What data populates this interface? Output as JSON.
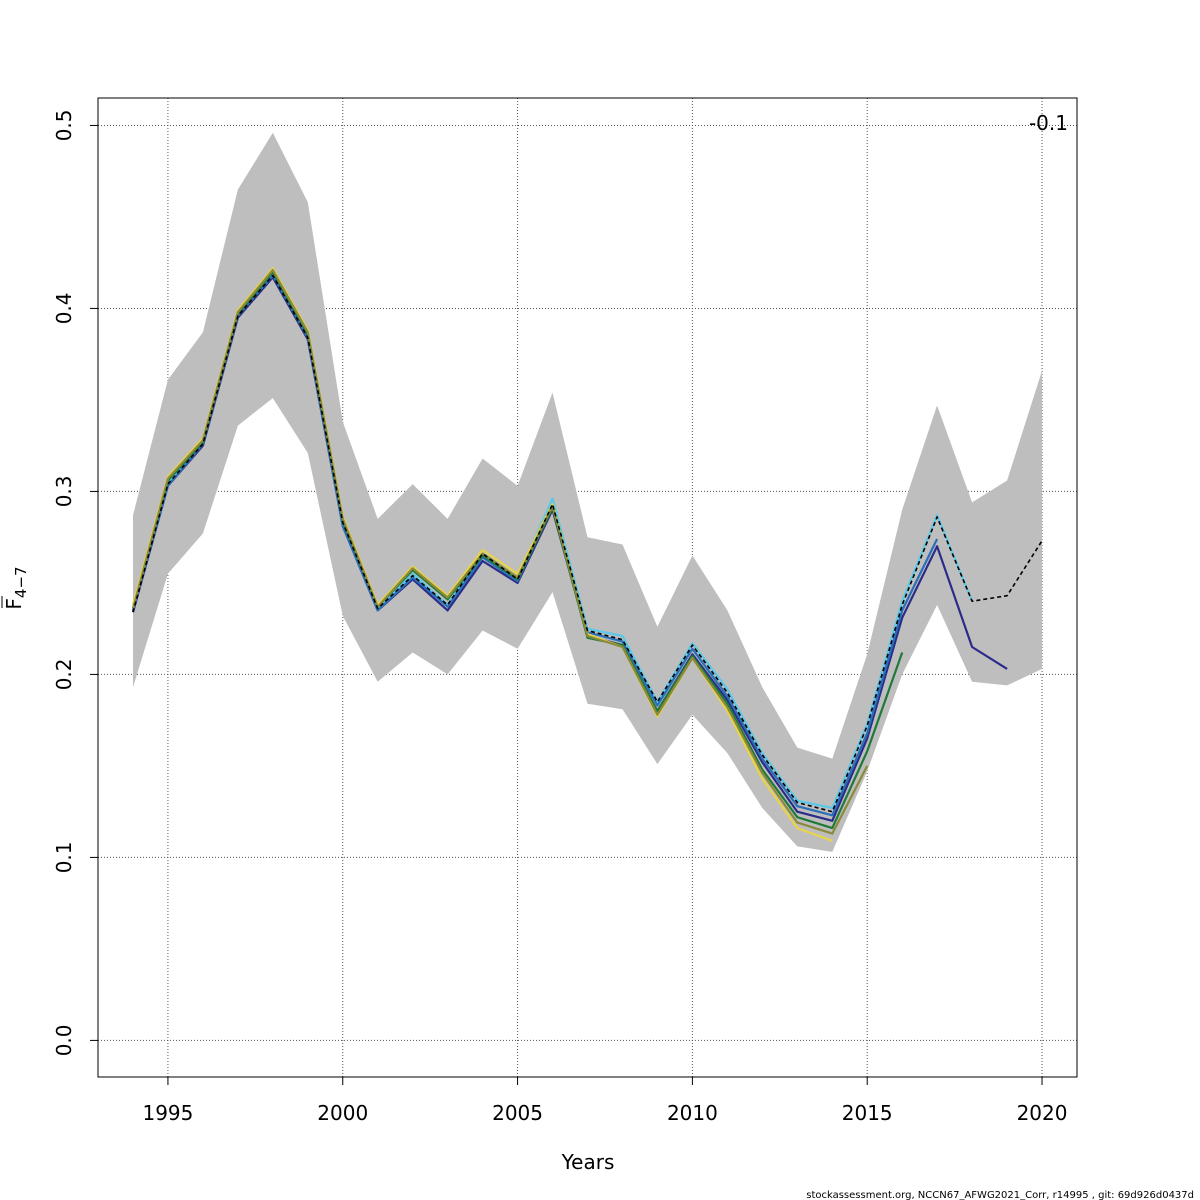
{
  "chart_data": {
    "type": "line",
    "title": "",
    "xlabel": "Years",
    "ylabel_main": "F",
    "ylabel_sub": "4−7",
    "corner_label": "-0.1",
    "footer": "stockassessment.org, NCCN67_AFWG2021_Corr, r14995 , git: 69d926d0437d",
    "xlim": [
      1993,
      2021
    ],
    "ylim": [
      -0.02,
      0.515
    ],
    "x_ticks": [
      1995,
      2000,
      2005,
      2010,
      2015,
      2020
    ],
    "y_ticks": [
      0.0,
      0.1,
      0.2,
      0.3,
      0.4,
      0.5
    ],
    "y_tick_labels": [
      "0.0",
      "0.1",
      "0.2",
      "0.3",
      "0.4",
      "0.5"
    ],
    "grid": true,
    "confidence_band": {
      "x": [
        1994,
        1995,
        1996,
        1997,
        1998,
        1999,
        2000,
        2001,
        2002,
        2003,
        2004,
        2005,
        2006,
        2007,
        2008,
        2009,
        2010,
        2011,
        2012,
        2013,
        2014,
        2015,
        2016,
        2017,
        2018,
        2019,
        2020
      ],
      "lower": [
        0.193,
        0.255,
        0.277,
        0.336,
        0.351,
        0.321,
        0.232,
        0.196,
        0.212,
        0.2,
        0.224,
        0.214,
        0.245,
        0.184,
        0.181,
        0.151,
        0.178,
        0.157,
        0.127,
        0.106,
        0.103,
        0.147,
        0.2,
        0.238,
        0.196,
        0.194,
        0.203
      ],
      "upper": [
        0.287,
        0.361,
        0.387,
        0.465,
        0.496,
        0.458,
        0.338,
        0.285,
        0.304,
        0.285,
        0.318,
        0.303,
        0.354,
        0.275,
        0.271,
        0.226,
        0.265,
        0.235,
        0.193,
        0.16,
        0.154,
        0.211,
        0.29,
        0.347,
        0.294,
        0.306,
        0.366
      ],
      "color": "#bebebe"
    },
    "series": [
      {
        "color": "#000000",
        "dashed": true,
        "x": [
          1994,
          1995,
          1996,
          1997,
          1998,
          1999,
          2000,
          2001,
          2002,
          2003,
          2004,
          2005,
          2006,
          2007,
          2008,
          2009,
          2010,
          2011,
          2012,
          2013,
          2014,
          2015,
          2016,
          2017,
          2018,
          2019,
          2020
        ],
        "values": [
          0.234,
          0.304,
          0.326,
          0.396,
          0.418,
          0.384,
          0.283,
          0.236,
          0.254,
          0.238,
          0.266,
          0.252,
          0.293,
          0.224,
          0.219,
          0.185,
          0.216,
          0.19,
          0.156,
          0.13,
          0.125,
          0.172,
          0.238,
          0.286,
          0.24,
          0.243,
          0.273
        ]
      },
      {
        "color": "#5bc8e8",
        "x": [
          1994,
          1995,
          1996,
          1997,
          1998,
          1999,
          2000,
          2001,
          2002,
          2003,
          2004,
          2005,
          2006,
          2007,
          2008,
          2009,
          2010,
          2011,
          2012,
          2013,
          2014,
          2015,
          2016,
          2017,
          2018
        ],
        "values": [
          0.235,
          0.305,
          0.327,
          0.397,
          0.419,
          0.385,
          0.283,
          0.236,
          0.255,
          0.238,
          0.266,
          0.253,
          0.296,
          0.225,
          0.221,
          0.185,
          0.217,
          0.192,
          0.157,
          0.131,
          0.127,
          0.173,
          0.24,
          0.287,
          0.24
        ]
      },
      {
        "color": "#2b2b8a",
        "x": [
          1994,
          1995,
          1996,
          1997,
          1998,
          1999,
          2000,
          2001,
          2002,
          2003,
          2004,
          2005,
          2006,
          2007,
          2008,
          2009,
          2010,
          2011,
          2012,
          2013,
          2014,
          2015,
          2016,
          2017,
          2018,
          2019
        ],
        "values": [
          0.234,
          0.303,
          0.325,
          0.395,
          0.417,
          0.383,
          0.281,
          0.235,
          0.252,
          0.235,
          0.262,
          0.25,
          0.29,
          0.221,
          0.216,
          0.18,
          0.211,
          0.186,
          0.152,
          0.125,
          0.12,
          0.165,
          0.231,
          0.27,
          0.215,
          0.203
        ]
      },
      {
        "color": "#2a70b8",
        "x": [
          1994,
          1995,
          1996,
          1997,
          1998,
          1999,
          2000,
          2001,
          2002,
          2003,
          2004,
          2005,
          2006,
          2007,
          2008,
          2009,
          2010,
          2011,
          2012,
          2013,
          2014,
          2015,
          2016,
          2017
        ],
        "values": [
          0.235,
          0.303,
          0.326,
          0.396,
          0.418,
          0.384,
          0.281,
          0.235,
          0.253,
          0.237,
          0.264,
          0.251,
          0.292,
          0.223,
          0.218,
          0.183,
          0.214,
          0.188,
          0.154,
          0.128,
          0.123,
          0.168,
          0.235,
          0.274
        ]
      },
      {
        "color": "#1f7a3a",
        "x": [
          1994,
          1995,
          1996,
          1997,
          1998,
          1999,
          2000,
          2001,
          2002,
          2003,
          2004,
          2005,
          2006,
          2007,
          2008,
          2009,
          2010,
          2011,
          2012,
          2013,
          2014,
          2015,
          2016
        ],
        "values": [
          0.236,
          0.306,
          0.327,
          0.397,
          0.42,
          0.386,
          0.284,
          0.237,
          0.257,
          0.241,
          0.265,
          0.252,
          0.291,
          0.22,
          0.216,
          0.18,
          0.21,
          0.184,
          0.148,
          0.122,
          0.116,
          0.158,
          0.212
        ]
      },
      {
        "color": "#e8d44a",
        "x": [
          1994,
          1995,
          1996,
          1997,
          1998,
          1999,
          2000,
          2001,
          2002,
          2003,
          2004,
          2005,
          2006,
          2007,
          2008,
          2009,
          2010,
          2011,
          2012,
          2013,
          2014
        ],
        "values": [
          0.238,
          0.308,
          0.329,
          0.399,
          0.422,
          0.388,
          0.286,
          0.238,
          0.259,
          0.243,
          0.268,
          0.255,
          0.293,
          0.222,
          0.215,
          0.177,
          0.209,
          0.18,
          0.143,
          0.116,
          0.109
        ]
      },
      {
        "color": "#8a8a3a",
        "x": [
          1994,
          1995,
          1996,
          1997,
          1998,
          1999,
          2000,
          2001,
          2002,
          2003,
          2004,
          2005,
          2006,
          2007,
          2008,
          2009,
          2010,
          2011,
          2012,
          2013,
          2014,
          2015
        ],
        "values": [
          0.236,
          0.307,
          0.328,
          0.398,
          0.421,
          0.387,
          0.285,
          0.237,
          0.258,
          0.242,
          0.266,
          0.253,
          0.292,
          0.221,
          0.215,
          0.178,
          0.209,
          0.182,
          0.146,
          0.119,
          0.113,
          0.15
        ]
      }
    ]
  }
}
